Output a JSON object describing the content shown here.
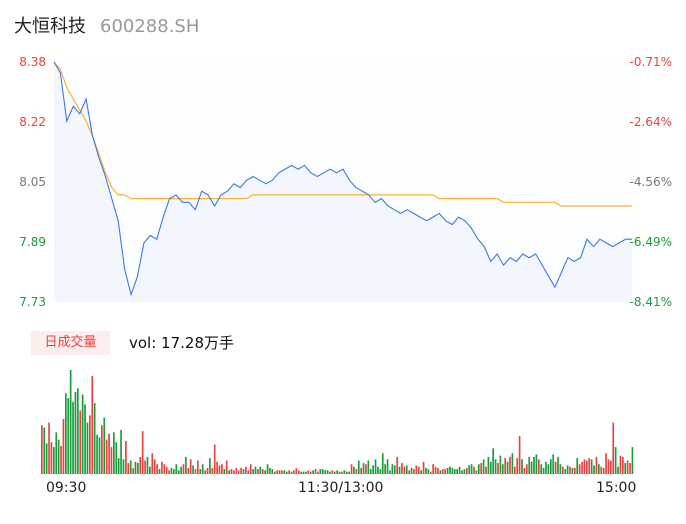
{
  "header": {
    "name": "大恒科技",
    "code": "600288.SH"
  },
  "colors": {
    "price_line": "#3b78e7",
    "avg_line": "#f5b33a",
    "up": "#e64340",
    "down": "#1a9c3a",
    "area": "#f3f6fc"
  },
  "chart_data": [
    {
      "type": "line",
      "title": "",
      "y_left_ticks": [
        "8.38",
        "8.22",
        "8.05",
        "7.89",
        "7.73"
      ],
      "y_right_ticks": [
        "-0.71%",
        "-2.64%",
        "-4.56%",
        "-6.49%",
        "-8.41%"
      ],
      "ylim": [
        7.73,
        8.38
      ],
      "x_ticks": [
        "09:30",
        "11:30/13:00",
        "15:00"
      ],
      "series": [
        {
          "role": "price",
          "values": [
            8.38,
            8.35,
            8.22,
            8.26,
            8.24,
            8.28,
            8.18,
            8.12,
            8.07,
            8.01,
            7.95,
            7.82,
            7.75,
            7.8,
            7.89,
            7.91,
            7.9,
            7.96,
            8.01,
            8.02,
            8.0,
            8.0,
            7.98,
            8.03,
            8.02,
            7.99,
            8.02,
            8.03,
            8.05,
            8.04,
            8.06,
            8.07,
            8.06,
            8.05,
            8.06,
            8.08,
            8.09,
            8.1,
            8.09,
            8.1,
            8.08,
            8.07,
            8.08,
            8.09,
            8.08,
            8.09,
            8.06,
            8.04,
            8.03,
            8.02,
            8.0,
            8.01,
            7.99,
            7.98,
            7.97,
            7.98,
            7.97,
            7.96,
            7.95,
            7.96,
            7.97,
            7.95,
            7.94,
            7.96,
            7.95,
            7.93,
            7.9,
            7.88,
            7.84,
            7.86,
            7.83,
            7.85,
            7.84,
            7.86,
            7.85,
            7.86,
            7.83,
            7.8,
            7.77,
            7.81,
            7.85,
            7.84,
            7.85,
            7.9,
            7.88,
            7.9,
            7.89,
            7.88,
            7.89,
            7.9,
            7.9
          ],
          "avg_values": [
            8.38,
            8.36,
            8.31,
            8.28,
            8.25,
            8.22,
            8.18,
            8.13,
            8.08,
            8.04,
            8.02,
            8.02,
            8.01,
            8.01,
            8.01,
            8.01,
            8.01,
            8.01,
            8.01,
            8.01,
            8.01,
            8.01,
            8.01,
            8.01,
            8.01,
            8.01,
            8.01,
            8.01,
            8.01,
            8.01,
            8.01,
            8.02,
            8.02,
            8.02,
            8.02,
            8.02,
            8.02,
            8.02,
            8.02,
            8.02,
            8.02,
            8.02,
            8.02,
            8.02,
            8.02,
            8.02,
            8.02,
            8.02,
            8.02,
            8.02,
            8.02,
            8.02,
            8.02,
            8.02,
            8.02,
            8.02,
            8.02,
            8.02,
            8.02,
            8.02,
            8.01,
            8.01,
            8.01,
            8.01,
            8.01,
            8.01,
            8.01,
            8.01,
            8.01,
            8.01,
            8.0,
            8.0,
            8.0,
            8.0,
            8.0,
            8.0,
            8.0,
            8.0,
            8.0,
            7.99,
            7.99,
            7.99,
            7.99,
            7.99,
            7.99,
            7.99,
            7.99,
            7.99,
            7.99,
            7.99,
            7.99
          ]
        }
      ]
    },
    {
      "type": "bar",
      "title": "",
      "label": "日成交量",
      "summary": "vol: 17.28万手",
      "x_ticks": [
        "09:30",
        "11:30/13:00",
        "15:00"
      ],
      "values": [
        40,
        38,
        25,
        42,
        26,
        22,
        34,
        28,
        23,
        45,
        66,
        62,
        85,
        59,
        67,
        70,
        52,
        65,
        57,
        42,
        48,
        80,
        58,
        32,
        30,
        40,
        46,
        28,
        33,
        22,
        34,
        26,
        13,
        36,
        12,
        27,
        9,
        11,
        5,
        10,
        9,
        14,
        35,
        11,
        14,
        6,
        17,
        12,
        8,
        4,
        10,
        8,
        6,
        3,
        5,
        4,
        8,
        3,
        6,
        8,
        14,
        5,
        12,
        7,
        4,
        11,
        4,
        8,
        3,
        5,
        13,
        5,
        24,
        10,
        7,
        8,
        4,
        11,
        3,
        4,
        3,
        5,
        3,
        5,
        4,
        6,
        3,
        8,
        4,
        6,
        4,
        6,
        4,
        3,
        8,
        5,
        4,
        2,
        3,
        3,
        3,
        3,
        2,
        3,
        2,
        3,
        5,
        3,
        2,
        2,
        2,
        3,
        2,
        3,
        4,
        2,
        4,
        4,
        3,
        3,
        2,
        3,
        2,
        3,
        2,
        2,
        3,
        2,
        2,
        8,
        6,
        4,
        11,
        5,
        9,
        8,
        11,
        4,
        7,
        12,
        6,
        4,
        17,
        8,
        12,
        3,
        8,
        7,
        14,
        6,
        9,
        6,
        7,
        3,
        5,
        4,
        7,
        6,
        3,
        10,
        5,
        4,
        2,
        8,
        6,
        5,
        3,
        4,
        4,
        5,
        6,
        5,
        4,
        4,
        6,
        3,
        4,
        5,
        7,
        8,
        6,
        3,
        8,
        9,
        12,
        6,
        14,
        10,
        21,
        12,
        9,
        15,
        8,
        13,
        10,
        14,
        17,
        6,
        13,
        31,
        12,
        5,
        8,
        14,
        10,
        14,
        16,
        12,
        8,
        5,
        10,
        8,
        12,
        16,
        10,
        14,
        8,
        6,
        4,
        7,
        6,
        5,
        5,
        13,
        8,
        10,
        12,
        11,
        13,
        12,
        7,
        14,
        8,
        6,
        5,
        17,
        12,
        11,
        42,
        22,
        6,
        15,
        14,
        9,
        11,
        9,
        22
      ],
      "up": [
        1,
        0,
        0,
        1,
        1,
        0,
        0,
        0,
        1,
        1,
        0,
        0,
        0,
        0,
        0,
        0,
        1,
        0,
        0,
        0,
        1,
        1,
        0,
        0,
        0,
        1,
        0,
        1,
        1,
        1,
        0,
        0,
        0,
        0,
        0,
        1,
        1,
        0,
        1,
        0,
        0,
        1,
        1,
        1,
        0,
        0,
        1,
        1,
        1,
        0,
        1,
        1,
        1,
        1,
        0,
        0,
        0,
        0,
        0,
        1,
        0,
        1,
        1,
        0,
        1,
        1,
        0,
        0,
        1,
        1,
        0,
        1,
        1,
        1,
        1,
        1,
        0,
        1,
        0,
        1,
        1,
        1,
        1,
        1,
        0,
        1,
        1,
        1,
        0,
        0,
        1,
        0,
        1,
        0,
        0,
        0,
        0,
        1,
        1,
        1,
        1,
        0,
        0,
        1,
        0,
        1,
        1,
        1,
        0,
        0,
        0,
        1,
        1,
        0,
        1,
        1,
        0,
        0,
        0,
        0,
        0,
        1,
        0,
        0,
        0,
        1,
        0,
        0,
        0,
        1,
        0,
        1,
        0,
        1,
        0,
        1,
        0,
        0,
        0,
        0,
        0,
        0,
        0,
        0,
        0,
        0,
        0,
        0,
        1,
        0,
        1,
        1,
        0,
        1,
        0,
        1,
        1,
        1,
        0,
        1,
        0,
        0,
        1,
        1,
        1,
        1,
        0,
        1,
        1,
        0,
        0,
        0,
        0,
        0,
        0,
        0,
        0,
        1,
        0,
        0,
        1,
        0,
        0,
        1,
        0,
        1,
        0,
        0,
        0,
        0,
        1,
        0,
        0,
        1,
        0,
        1,
        0,
        1,
        1,
        1,
        0,
        1,
        1,
        0,
        0,
        0,
        0,
        1,
        0,
        0,
        0,
        0,
        0,
        0,
        1,
        0,
        0,
        1,
        0,
        0,
        1,
        0,
        1,
        0,
        1,
        1,
        1,
        1,
        1,
        0,
        0,
        1,
        0,
        1,
        1,
        1,
        1,
        1,
        1,
        0,
        0,
        1,
        1,
        0,
        1,
        1,
        0,
        0,
        0
      ]
    }
  ]
}
